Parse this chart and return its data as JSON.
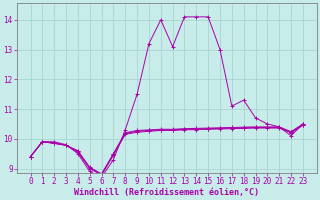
{
  "xlabel": "Windchill (Refroidissement éolien,°C)",
  "bg_color": "#c8ecea",
  "grid_color": "#a0d0ce",
  "line_color": "#aa00aa",
  "spine_color": "#808080",
  "x_values": [
    0,
    1,
    2,
    3,
    4,
    5,
    6,
    7,
    8,
    9,
    10,
    11,
    12,
    13,
    14,
    15,
    16,
    17,
    18,
    19,
    20,
    21,
    22,
    23
  ],
  "line1_y": [
    9.4,
    9.9,
    9.9,
    9.8,
    9.5,
    8.9,
    8.7,
    9.3,
    10.3,
    11.5,
    13.2,
    14.0,
    13.1,
    14.1,
    14.1,
    14.1,
    13.0,
    11.1,
    11.3,
    10.7,
    10.5,
    10.4,
    10.1,
    10.5
  ],
  "line2_y": [
    9.4,
    9.9,
    9.85,
    9.78,
    9.55,
    9.0,
    8.78,
    9.45,
    10.15,
    10.22,
    10.25,
    10.28,
    10.28,
    10.3,
    10.31,
    10.32,
    10.33,
    10.34,
    10.35,
    10.36,
    10.36,
    10.36,
    10.2,
    10.45
  ],
  "line3_y": [
    9.4,
    9.9,
    9.85,
    9.78,
    9.58,
    9.02,
    8.8,
    9.48,
    10.18,
    10.25,
    10.28,
    10.3,
    10.3,
    10.32,
    10.33,
    10.34,
    10.35,
    10.36,
    10.37,
    10.38,
    10.38,
    10.38,
    10.22,
    10.48
  ],
  "line4_y": [
    9.4,
    9.9,
    9.85,
    9.78,
    9.6,
    9.04,
    8.82,
    9.5,
    10.2,
    10.28,
    10.3,
    10.32,
    10.32,
    10.34,
    10.35,
    10.36,
    10.37,
    10.38,
    10.39,
    10.4,
    10.4,
    10.4,
    10.24,
    10.5
  ],
  "ylim_bottom": 8.85,
  "ylim_top": 14.55,
  "yticks": [
    9,
    10,
    11,
    12,
    13,
    14
  ],
  "xticks": [
    0,
    1,
    2,
    3,
    4,
    5,
    6,
    7,
    8,
    9,
    10,
    11,
    12,
    13,
    14,
    15,
    16,
    17,
    18,
    19,
    20,
    21,
    22,
    23
  ],
  "tick_fontsize": 5.5,
  "xlabel_fontsize": 6.0
}
